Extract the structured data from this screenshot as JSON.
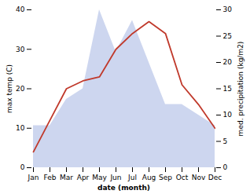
{
  "chart_data": {
    "type": "line",
    "categories": [
      "Jan",
      "Feb",
      "Mar",
      "Apr",
      "May",
      "Jun",
      "Jul",
      "Aug",
      "Sep",
      "Oct",
      "Nov",
      "Dec"
    ],
    "xlabel": "date (month)",
    "ylabel": "max temp (C)",
    "y2label": "med. precipitation (kg/m2)",
    "series": [
      {
        "type": "area",
        "axis": "y2",
        "color": "#b8c4e8",
        "values": [
          8,
          8,
          13,
          15,
          30,
          22,
          28,
          20,
          12,
          12,
          10,
          8
        ]
      },
      {
        "type": "line",
        "color": "#c0392b",
        "values": [
          4,
          12,
          20,
          22,
          23,
          30,
          34,
          37,
          34,
          21,
          16,
          10
        ]
      }
    ],
    "ylim": [
      0,
      40
    ],
    "yticks": [
      0,
      10,
      20,
      30,
      40
    ],
    "y2lim": [
      0,
      30
    ],
    "y2ticks": [
      0,
      5,
      10,
      15,
      20,
      25,
      30
    ],
    "grid": false
  }
}
